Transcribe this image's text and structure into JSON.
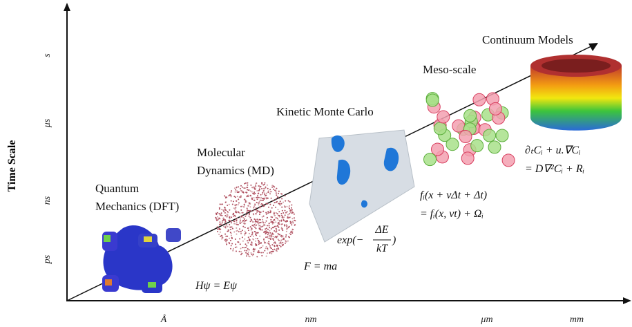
{
  "y_axis": {
    "title": "Time Scale",
    "ticks": [
      "ps",
      "ns",
      "μs",
      "s"
    ]
  },
  "x_axis": {
    "ticks": [
      "Å",
      "nm",
      "μm",
      "mm"
    ]
  },
  "methods": [
    {
      "label": [
        "Quantum",
        "Mechanics (DFT)"
      ],
      "equation": [
        "Hψ = Eψ"
      ]
    },
    {
      "label": [
        "Molecular",
        "Dynamics (MD)"
      ],
      "equation": [
        "F = ma"
      ]
    },
    {
      "label": [
        "Kinetic Monte Carlo"
      ],
      "equation": {
        "prefix": "exp(−",
        "numerator": "ΔE",
        "denominator": "kT",
        "suffix": ")"
      }
    },
    {
      "label": [
        "Meso-scale"
      ],
      "equation": [
        "fᵢ(x + vΔt + Δt)",
        "= fᵢ(x, vt) + Ωᵢ"
      ]
    },
    {
      "label": [
        "Continuum Models"
      ],
      "equation": [
        "∂ₜCᵢ + u.∇Cᵢ",
        "= D∇²Cᵢ + Rᵢ"
      ]
    }
  ]
}
